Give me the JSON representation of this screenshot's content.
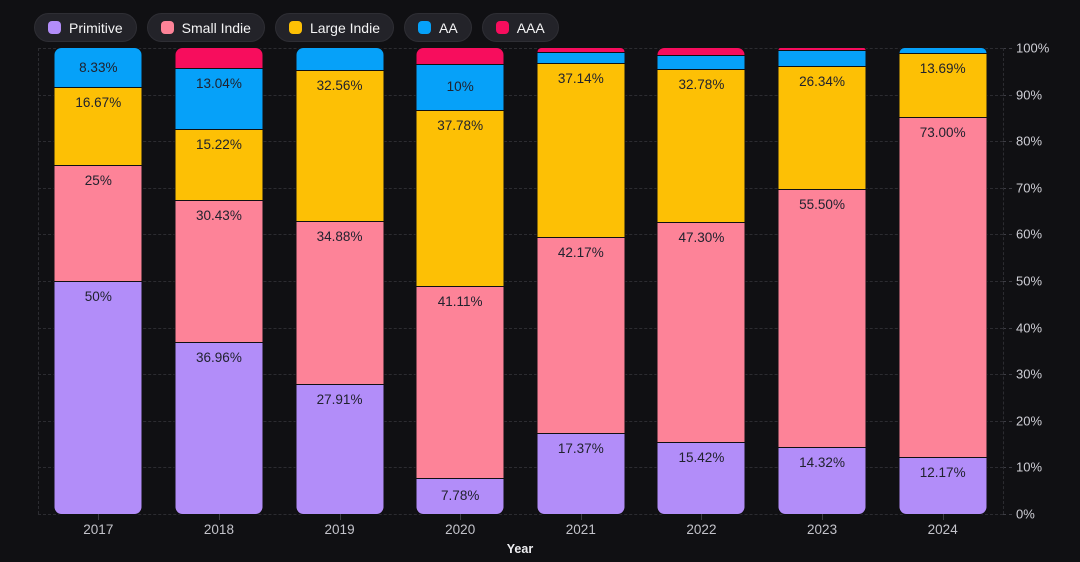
{
  "colors": {
    "background": "#101013",
    "legend_pill_bg": "#232329",
    "grid": "#2c2c31",
    "axis_text": "#cfcfd6",
    "segment_label_text": "#20222e"
  },
  "legend": {
    "items": [
      {
        "label": "Primitive",
        "color": "#b28df9"
      },
      {
        "label": "Small Indie",
        "color": "#fd8398"
      },
      {
        "label": "Large Indie",
        "color": "#fdc005"
      },
      {
        "label": "AA",
        "color": "#06a1f9"
      },
      {
        "label": "AAA",
        "color": "#f70d5d"
      }
    ]
  },
  "chart_data": {
    "type": "bar",
    "stacked": true,
    "percent_scale": true,
    "title": "",
    "xlabel": "Year",
    "ylabel": "",
    "ylim": [
      0,
      100
    ],
    "grid": "dashed-horizontal",
    "legend_position": "top-left",
    "y_axis_side": "right",
    "y_ticks": [
      "0%",
      "10%",
      "20%",
      "30%",
      "40%",
      "50%",
      "60%",
      "70%",
      "80%",
      "90%",
      "100%"
    ],
    "categories": [
      "2017",
      "2018",
      "2019",
      "2020",
      "2021",
      "2022",
      "2023",
      "2024"
    ],
    "series": [
      {
        "name": "Primitive",
        "color": "#b28df9",
        "values": [
          50,
          36.96,
          27.91,
          7.78,
          17.37,
          15.42,
          14.32,
          12.17
        ],
        "labels": [
          "50%",
          "36.96%",
          "27.91%",
          "7.78%",
          "17.37%",
          "15.42%",
          "14.32%",
          "12.17%"
        ]
      },
      {
        "name": "Small Indie",
        "color": "#fd8398",
        "values": [
          25,
          30.43,
          34.88,
          41.11,
          42.17,
          47.3,
          55.5,
          73
        ],
        "labels": [
          "25%",
          "30.43%",
          "34.88%",
          "41.11%",
          "42.17%",
          "47.30%",
          "55.50%",
          "73.00%"
        ]
      },
      {
        "name": "Large Indie",
        "color": "#fdc005",
        "values": [
          16.67,
          15.22,
          32.56,
          37.78,
          37.14,
          32.78,
          26.34,
          13.69
        ],
        "labels": [
          "16.67%",
          "15.22%",
          "32.56%",
          "37.78%",
          "37.14%",
          "32.78%",
          "26.34%",
          "13.69%"
        ]
      },
      {
        "name": "AA",
        "color": "#06a1f9",
        "values": [
          8.33,
          13.04,
          4.65,
          10,
          2.41,
          3,
          3.4,
          1.14
        ],
        "labels": [
          "8.33%",
          "13.04%",
          "",
          "10%",
          "",
          "",
          "",
          ""
        ]
      },
      {
        "name": "AAA",
        "color": "#f70d5d",
        "values": [
          0,
          4.35,
          0,
          3.33,
          0.91,
          1.5,
          0.44,
          0
        ],
        "labels": [
          "",
          "",
          "",
          "",
          "",
          "",
          "",
          ""
        ]
      }
    ]
  }
}
